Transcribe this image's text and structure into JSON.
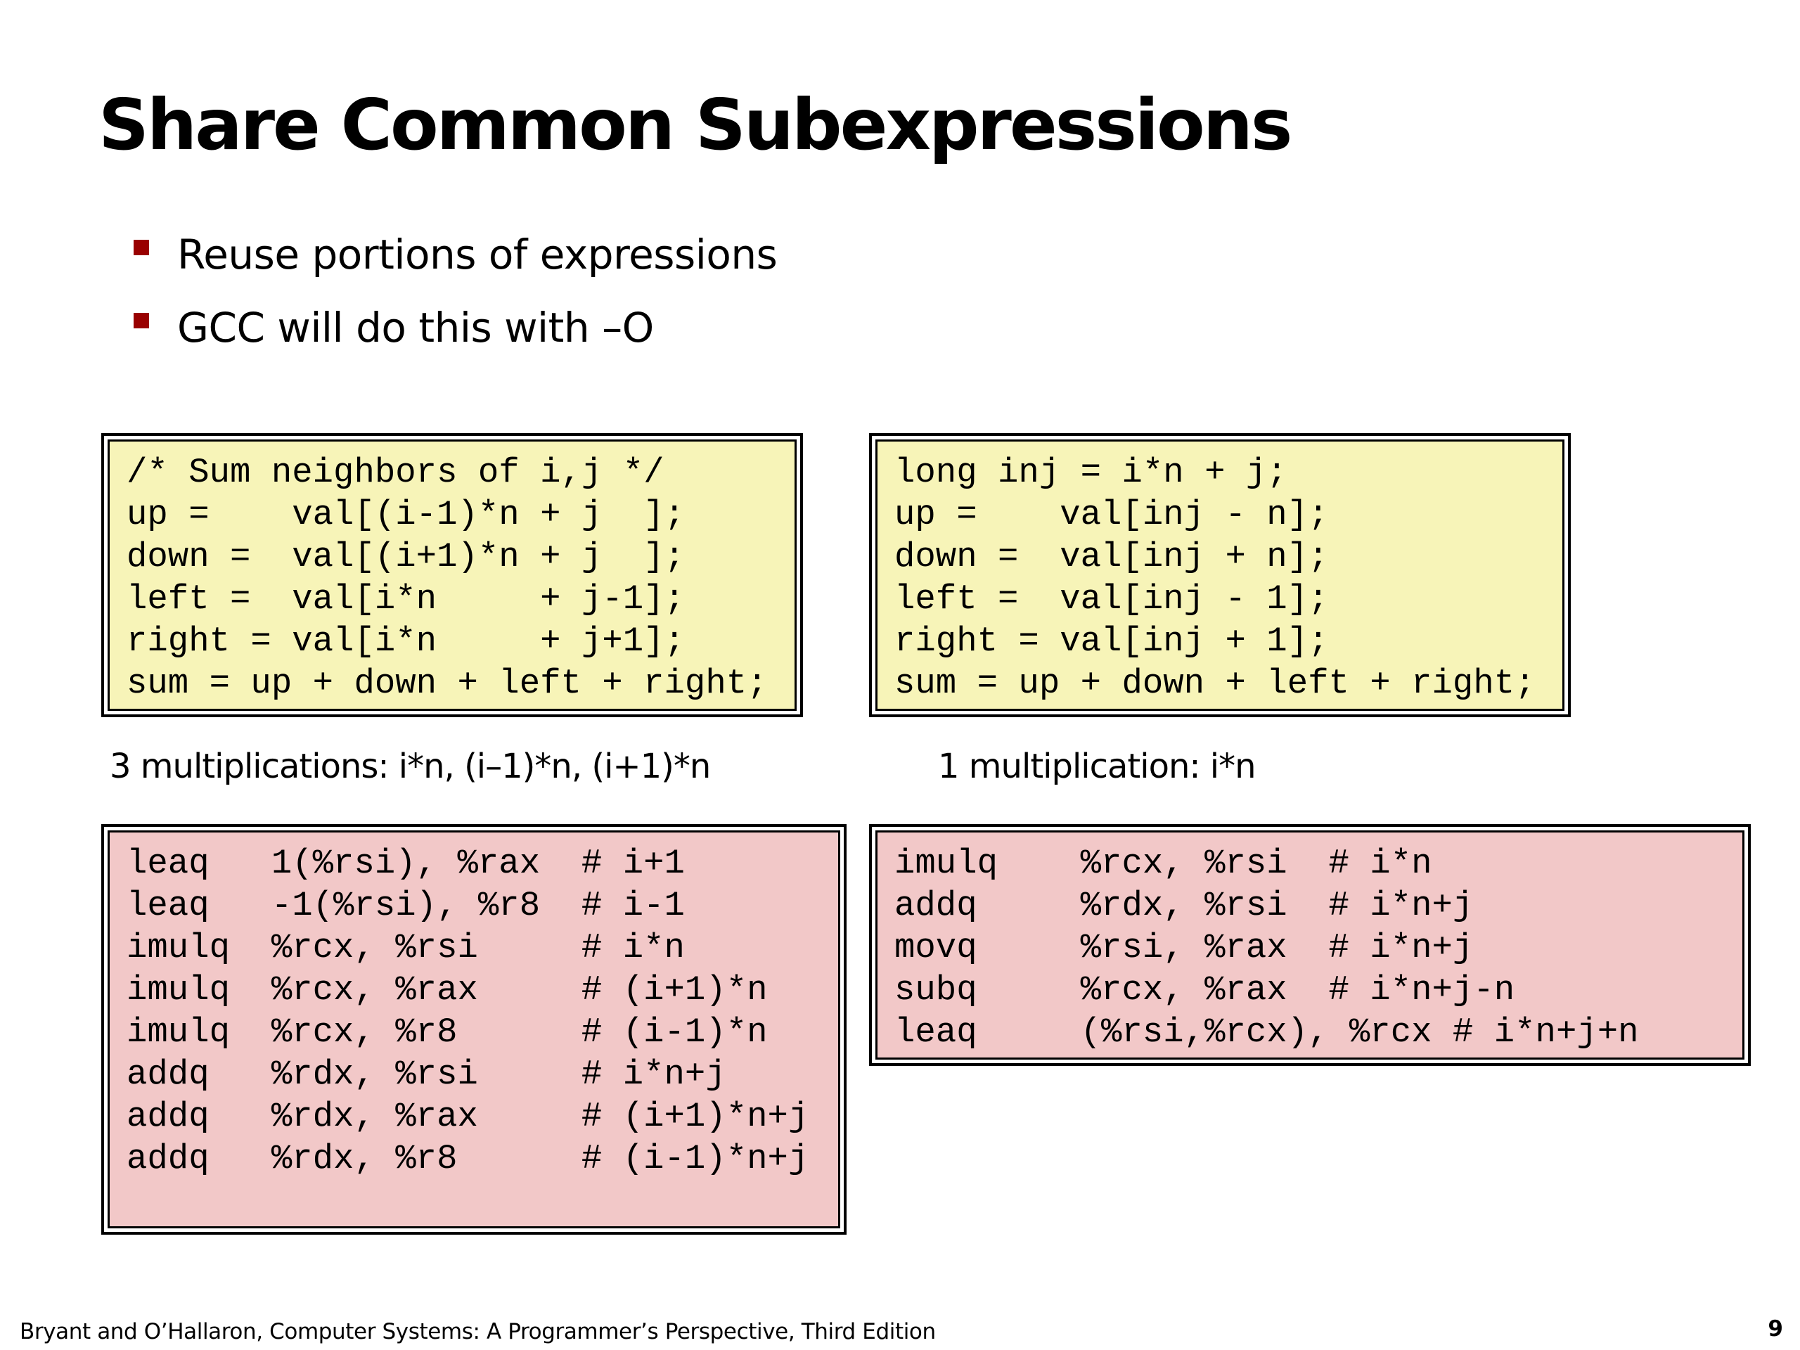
{
  "slide": {
    "title": "Share Common Subexpressions",
    "bullets": [
      "Reuse portions of expressions",
      "GCC will do this with –O"
    ]
  },
  "colors": {
    "bullet_marker": "#990000",
    "c_code_background": "#f7f4b8",
    "asm_code_background": "#f2c8c8",
    "border": "#000000"
  },
  "original": {
    "c_code": [
      "/* Sum neighbors of i,j */",
      "up =    val[(i-1)*n + j  ];",
      "down =  val[(i+1)*n + j  ];",
      "left =  val[i*n     + j-1];",
      "right = val[i*n     + j+1];",
      "sum = up + down + left + right;"
    ],
    "caption": "3 multiplications: i*n, (i–1)*n, (i+1)*n",
    "asm_code": [
      "leaq   1(%rsi), %rax  # i+1",
      "leaq   -1(%rsi), %r8  # i-1",
      "imulq  %rcx, %rsi     # i*n",
      "imulq  %rcx, %rax     # (i+1)*n",
      "imulq  %rcx, %r8      # (i-1)*n",
      "addq   %rdx, %rsi     # i*n+j",
      "addq   %rdx, %rax     # (i+1)*n+j",
      "addq   %rdx, %r8      # (i-1)*n+j"
    ]
  },
  "optimized": {
    "c_code": [
      "long inj = i*n + j;",
      "up =    val[inj - n];",
      "down =  val[inj + n];",
      "left =  val[inj - 1];",
      "right = val[inj + 1];",
      "sum = up + down + left + right;"
    ],
    "caption": "1 multiplication: i*n",
    "asm_code": [
      "imulq    %rcx, %rsi  # i*n",
      "addq     %rdx, %rsi  # i*n+j",
      "movq     %rsi, %rax  # i*n+j",
      "subq     %rcx, %rax  # i*n+j-n",
      "leaq     (%rsi,%rcx), %rcx # i*n+j+n"
    ]
  },
  "footer": {
    "citation": "Bryant and O’Hallaron, Computer Systems: A Programmer’s Perspective, Third Edition",
    "page_number": "9"
  }
}
